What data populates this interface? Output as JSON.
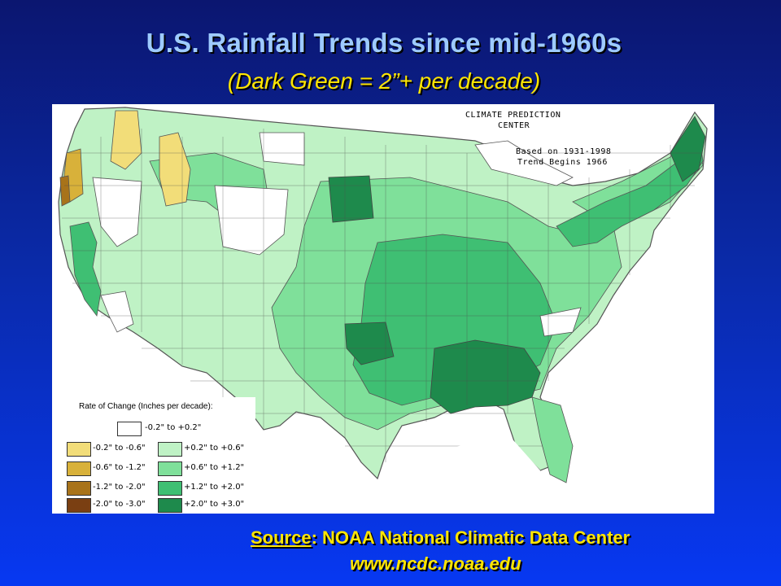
{
  "header": {
    "title": "U.S. Rainfall Trends since mid-1960s",
    "subtitle": "(Dark Green = 2”+ per decade)"
  },
  "map": {
    "agency_label_1": "CLIMATE PREDICTION",
    "agency_label_2": "CENTER",
    "based_on": "Based on 1931-1998",
    "trend_begins": "Trend Begins 1966",
    "legend": {
      "title": "Rate of Change (Inches per decade):",
      "neutral": {
        "label": "-0.2\" to +0.2\"",
        "color": "#ffffff"
      },
      "dry": [
        {
          "label": "-0.2\" to -0.6\"",
          "color": "#f2dd79"
        },
        {
          "label": "-0.6\" to -1.2\"",
          "color": "#d8b13a"
        },
        {
          "label": "-1.2\" to -2.0\"",
          "color": "#a8731a"
        },
        {
          "label": "-2.0\" to -3.0\"",
          "color": "#7a3f12"
        }
      ],
      "wet": [
        {
          "label": "+0.2\" to +0.6\"",
          "color": "#bff2c5"
        },
        {
          "label": "+0.6\" to +1.2\"",
          "color": "#7fe09a"
        },
        {
          "label": "+1.2\" to +2.0\"",
          "color": "#3fbf73"
        },
        {
          "label": "+2.0\" to +3.0\"",
          "color": "#1e8a4c"
        }
      ]
    }
  },
  "footer": {
    "source_key": "Source",
    "source_sep": ":  ",
    "source_value": "NOAA National Climatic Data Center",
    "url": "www.ncdc.noaa.edu"
  }
}
